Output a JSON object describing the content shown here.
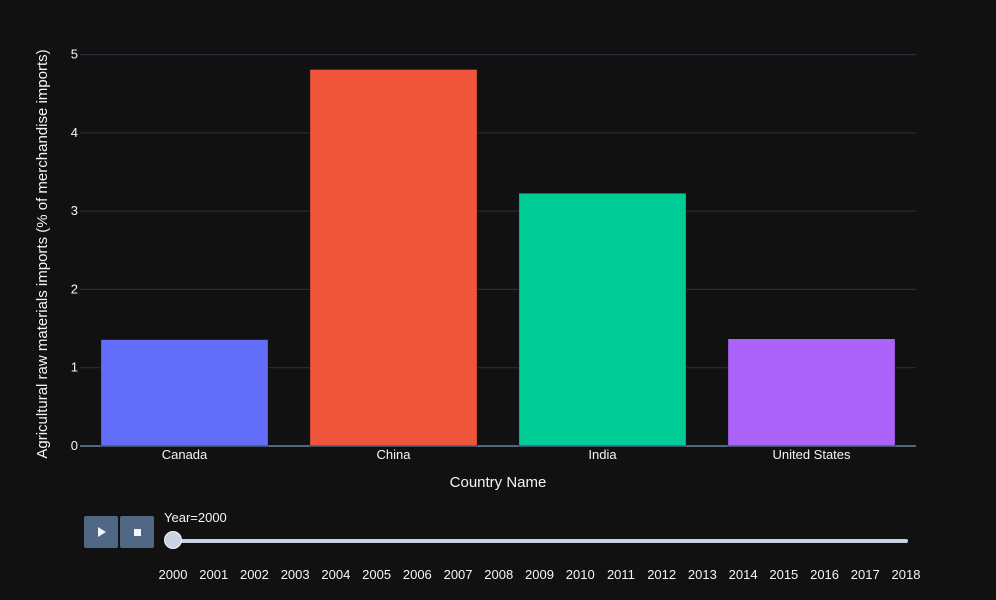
{
  "chart_data": {
    "type": "bar",
    "categories": [
      "Canada",
      "China",
      "India",
      "United States"
    ],
    "values": [
      1.36,
      4.81,
      3.23,
      1.37
    ],
    "colors": [
      "#636efa",
      "#ef553b",
      "#00cc96",
      "#ab63fa"
    ],
    "xlabel": "Country Name",
    "ylabel": "Agricultural raw materials imports (% of merchandise imports)",
    "ylim": [
      0,
      5.25
    ],
    "yticks": [
      0,
      1,
      2,
      3,
      4,
      5
    ],
    "grid": true,
    "background": "#111111",
    "gridColor": "#283442"
  },
  "slider": {
    "label": "Year=2000",
    "current": "2000",
    "steps": [
      "2000",
      "2001",
      "2002",
      "2003",
      "2004",
      "2005",
      "2006",
      "2007",
      "2008",
      "2009",
      "2010",
      "2011",
      "2012",
      "2013",
      "2014",
      "2015",
      "2016",
      "2017",
      "2018"
    ]
  },
  "controls": {
    "play_icon": "play-icon",
    "stop_icon": "stop-icon"
  }
}
